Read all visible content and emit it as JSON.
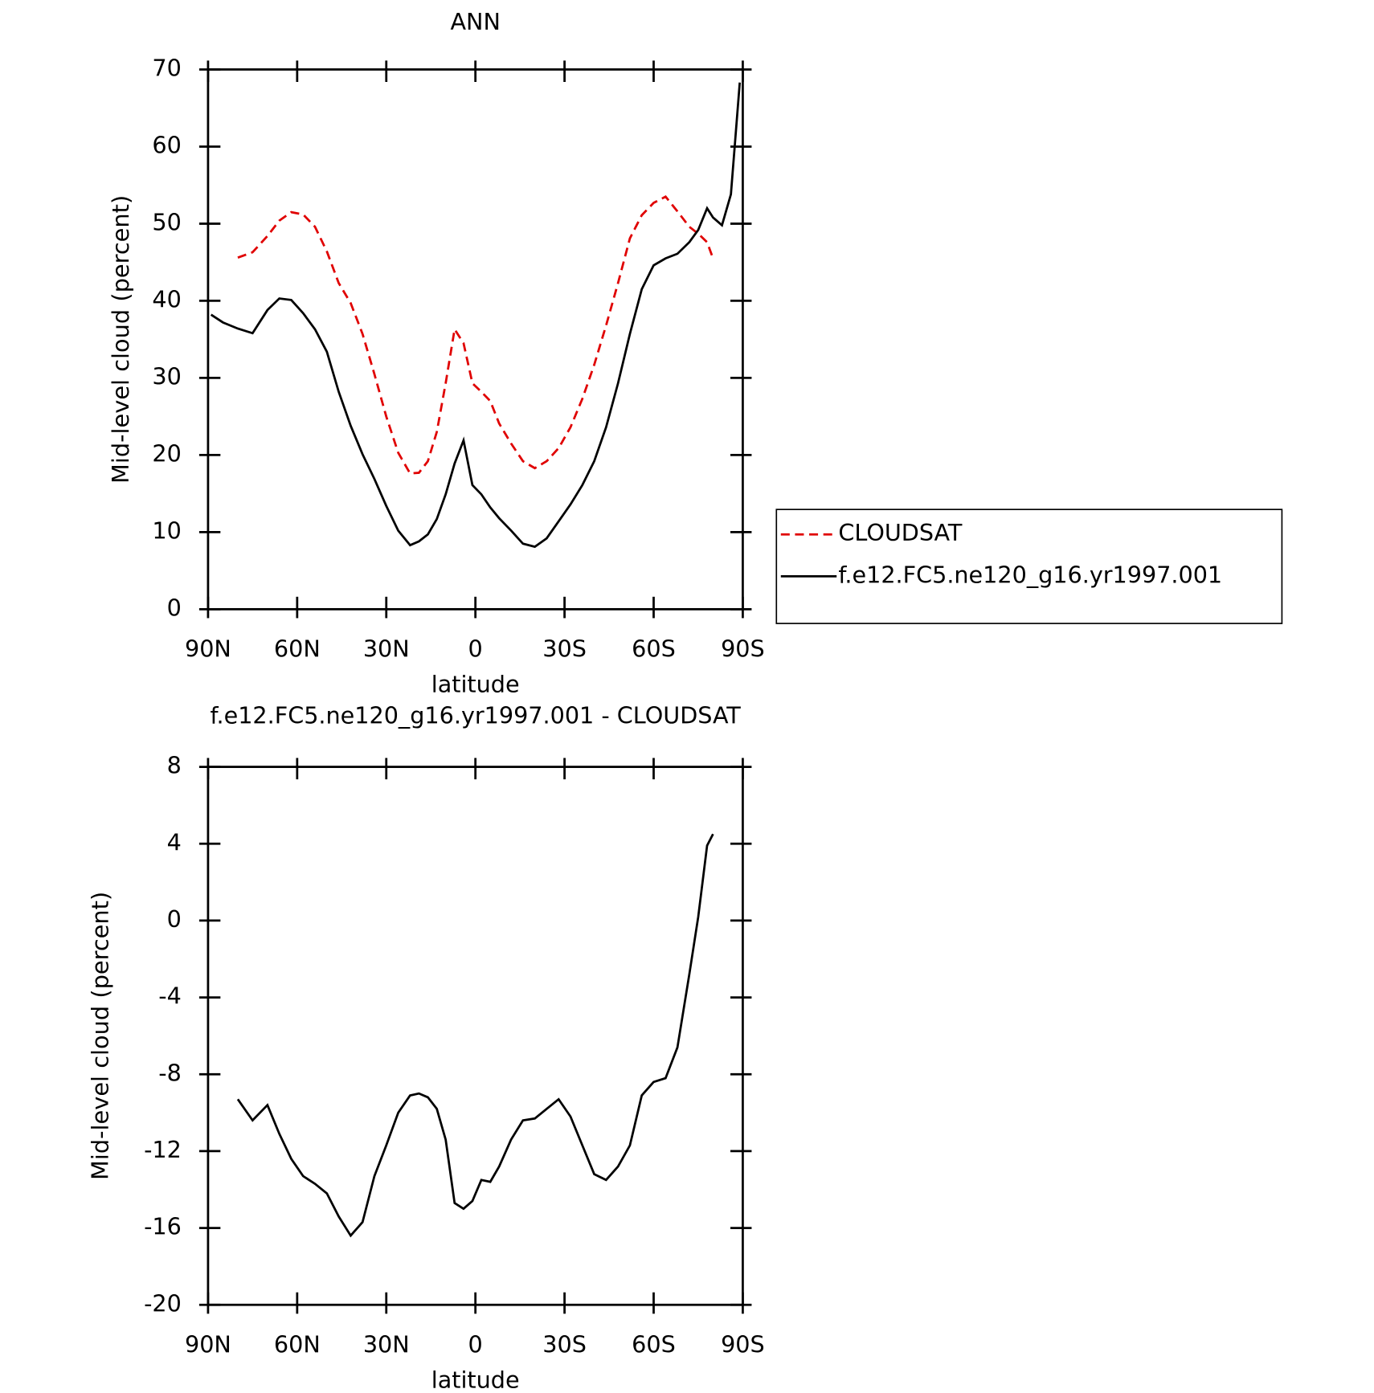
{
  "chart_data": [
    {
      "type": "line",
      "title": "ANN",
      "xlabel": "latitude",
      "ylabel": "Mid-level cloud (percent)",
      "x": [
        89,
        85,
        80,
        75,
        70,
        66,
        62,
        58,
        54,
        50,
        46,
        42,
        38,
        34,
        30,
        26,
        22,
        19,
        16,
        13,
        10,
        7,
        4,
        1,
        -2,
        -5,
        -8,
        -12,
        -16,
        -20,
        -24,
        -28,
        -32,
        -36,
        -40,
        -44,
        -48,
        -52,
        -56,
        -60,
        -64,
        -68,
        -72,
        -75,
        -78,
        -80,
        -83,
        -86,
        -89
      ],
      "series": [
        {
          "name": "CLOUDSAT",
          "color": "#e00000",
          "dash": true,
          "values": [
            null,
            null,
            45.6,
            46.3,
            48.4,
            50.4,
            51.5,
            51.2,
            49.6,
            46.4,
            42.3,
            39.7,
            35.7,
            30.5,
            25.0,
            20.3,
            17.6,
            17.7,
            19.2,
            23.0,
            29.3,
            36.3,
            34.5,
            29.3,
            28.2,
            27.0,
            24.1,
            21.5,
            19.2,
            18.3,
            19.2,
            20.9,
            23.6,
            27.3,
            31.7,
            36.8,
            42.3,
            48.1,
            51.1,
            52.7,
            53.5,
            51.6,
            49.6,
            48.7,
            47.6,
            45.5,
            null,
            null,
            null
          ]
        },
        {
          "name": "f.e12.FC5.ne120_g16.yr1997.001",
          "color": "#000000",
          "dash": false,
          "values": [
            38.2,
            37.2,
            36.4,
            35.8,
            38.8,
            40.3,
            40.1,
            38.4,
            36.3,
            33.4,
            28.2,
            23.8,
            20.1,
            16.9,
            13.4,
            10.2,
            8.3,
            8.8,
            9.7,
            11.7,
            14.9,
            18.9,
            21.9,
            16.1,
            14.9,
            13.2,
            11.8,
            10.2,
            8.5,
            8.1,
            9.2,
            11.4,
            13.6,
            16.1,
            19.2,
            23.6,
            29.3,
            35.7,
            41.5,
            44.6,
            45.5,
            46.1,
            47.6,
            49.2,
            52.0,
            50.8,
            49.8,
            53.8,
            68.3
          ]
        }
      ],
      "xlim": [
        90,
        -90
      ],
      "xticks": [
        {
          "value": 90,
          "label": "90N"
        },
        {
          "value": 60,
          "label": "60N"
        },
        {
          "value": 30,
          "label": "30N"
        },
        0,
        {
          "value": -30,
          "label": "30S"
        },
        {
          "value": -60,
          "label": "60S"
        },
        {
          "value": -90,
          "label": "90S"
        }
      ],
      "ylim": [
        0,
        70
      ],
      "yticks": [
        0,
        10,
        20,
        30,
        40,
        50,
        60,
        70
      ],
      "legend": "right"
    },
    {
      "type": "line",
      "title": "f.e12.FC5.ne120_g16.yr1997.001 - CLOUDSAT",
      "xlabel": "latitude",
      "ylabel": "Mid-level cloud (percent)",
      "x": [
        80,
        75,
        70,
        66,
        62,
        58,
        54,
        50,
        46,
        42,
        38,
        34,
        30,
        26,
        22,
        19,
        16,
        13,
        10,
        7,
        4,
        1,
        -2,
        -5,
        -8,
        -12,
        -16,
        -20,
        -24,
        -28,
        -32,
        -36,
        -40,
        -44,
        -48,
        -52,
        -56,
        -60,
        -64,
        -68,
        -72,
        -75,
        -78,
        -80
      ],
      "values": [
        -9.3,
        -10.4,
        -9.6,
        -11.1,
        -12.4,
        -13.3,
        -13.7,
        -14.2,
        -15.4,
        -16.4,
        -15.7,
        -13.3,
        -11.7,
        -10.0,
        -9.1,
        -9.0,
        -9.2,
        -9.8,
        -11.4,
        -14.7,
        -15.0,
        -14.6,
        -13.5,
        -13.6,
        -12.8,
        -11.4,
        -10.4,
        -10.3,
        -9.8,
        -9.3,
        -10.2,
        -11.7,
        -13.2,
        -13.5,
        -12.8,
        -11.7,
        -9.1,
        -8.4,
        -8.2,
        -6.6,
        -2.8,
        0.2,
        3.9,
        4.5
      ],
      "color": "#000000",
      "xlim": [
        90,
        -90
      ],
      "xticks": [
        {
          "value": 90,
          "label": "90N"
        },
        {
          "value": 60,
          "label": "60N"
        },
        {
          "value": 30,
          "label": "30N"
        },
        0,
        {
          "value": -30,
          "label": "30S"
        },
        {
          "value": -60,
          "label": "60S"
        },
        {
          "value": -90,
          "label": "90S"
        }
      ],
      "ylim": [
        -20,
        8
      ],
      "yticks": [
        -20,
        -16,
        -12,
        -8,
        -4,
        0,
        4,
        8
      ]
    }
  ]
}
